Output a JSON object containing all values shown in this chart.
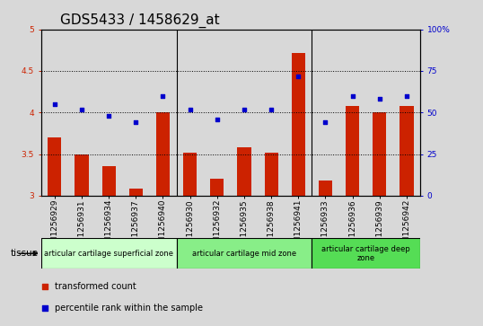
{
  "title": "GDS5433 / 1458629_at",
  "samples": [
    "GSM1256929",
    "GSM1256931",
    "GSM1256934",
    "GSM1256937",
    "GSM1256940",
    "GSM1256930",
    "GSM1256932",
    "GSM1256935",
    "GSM1256938",
    "GSM1256941",
    "GSM1256933",
    "GSM1256936",
    "GSM1256939",
    "GSM1256942"
  ],
  "transformed_count": [
    3.7,
    3.5,
    3.35,
    3.08,
    4.0,
    3.52,
    3.2,
    3.58,
    3.52,
    4.72,
    3.18,
    4.08,
    4.0,
    4.08
  ],
  "percentile_rank": [
    55,
    52,
    48,
    44,
    60,
    52,
    46,
    52,
    52,
    72,
    44,
    60,
    58,
    60
  ],
  "bar_color": "#cc2200",
  "dot_color": "#0000cc",
  "ylim_left": [
    3.0,
    5.0
  ],
  "ylim_right": [
    0,
    100
  ],
  "yticks_left": [
    3.0,
    3.5,
    4.0,
    4.5,
    5.0
  ],
  "ytick_labels_left": [
    "3",
    "3.5",
    "4",
    "4.5",
    "5"
  ],
  "yticks_right": [
    0,
    25,
    50,
    75,
    100
  ],
  "ytick_labels_right": [
    "0",
    "25",
    "50",
    "75",
    "100%"
  ],
  "hlines": [
    3.5,
    4.0,
    4.5
  ],
  "groups": [
    {
      "label": "articular cartilage superficial zone",
      "start": 0,
      "end": 4,
      "color": "#ccffcc"
    },
    {
      "label": "articular cartilage mid zone",
      "start": 5,
      "end": 9,
      "color": "#88ee88"
    },
    {
      "label": "articular cartilage deep\nzone",
      "start": 10,
      "end": 13,
      "color": "#55dd55"
    }
  ],
  "bg_color": "#d8d8d8",
  "plot_bg_color": "#ffffff",
  "title_fontsize": 11,
  "tick_fontsize": 6.5,
  "group_fontsize": 6,
  "axis_label_color_left": "#cc2200",
  "axis_label_color_right": "#0000cc",
  "legend_items": [
    {
      "label": "transformed count",
      "color": "#cc2200"
    },
    {
      "label": "percentile rank within the sample",
      "color": "#0000cc"
    }
  ]
}
